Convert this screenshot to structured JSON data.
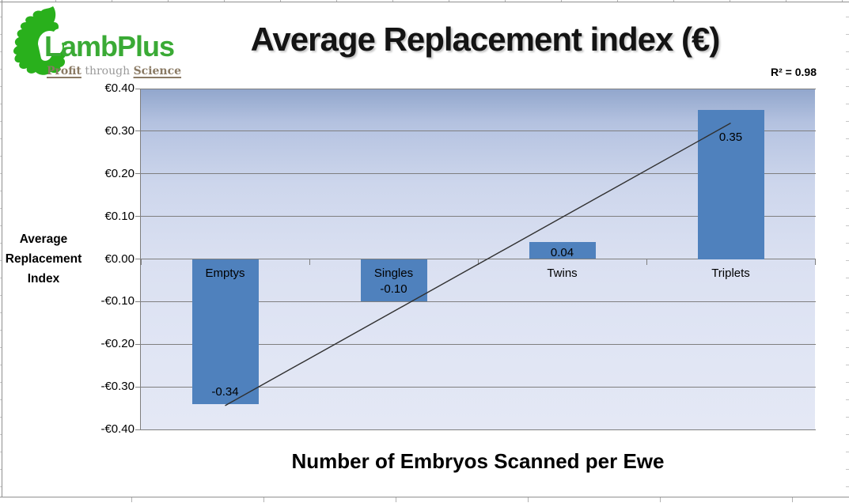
{
  "logo": {
    "brand": "LambPlus",
    "tagline": {
      "profit": "Profit",
      "through": " through ",
      "science": "Science"
    },
    "colors": {
      "map_green": "#29b01c",
      "brand_green": "#3aaa35",
      "tagline_brown": "#8a7a64",
      "tagline_gray": "#9a9a9a"
    }
  },
  "chart_data": {
    "type": "bar",
    "title": "Average Replacement index (€)",
    "xlabel": "Number of Embryos Scanned per Ewe",
    "ylabel": "Average Replacement Index",
    "ylabel_lines": [
      "Average",
      "Replacement",
      "Index"
    ],
    "categories": [
      "Emptys",
      "Singles",
      "Twins",
      "Triplets"
    ],
    "values": [
      -0.34,
      -0.1,
      0.04,
      0.35
    ],
    "value_labels": [
      "-0.34",
      "-0.10",
      "0.04",
      "0.35"
    ],
    "ylim": [
      -0.4,
      0.4
    ],
    "y_tick_step": 0.1,
    "y_ticks": [
      {
        "value": 0.4,
        "label": "€0.40"
      },
      {
        "value": 0.3,
        "label": "€0.30"
      },
      {
        "value": 0.2,
        "label": "€0.20"
      },
      {
        "value": 0.1,
        "label": "€0.10"
      },
      {
        "value": 0.0,
        "label": "€0.00"
      },
      {
        "value": -0.1,
        "label": "-€0.10"
      },
      {
        "value": -0.2,
        "label": "-€0.20"
      },
      {
        "value": -0.3,
        "label": "-€0.30"
      },
      {
        "value": -0.4,
        "label": "-€0.40"
      }
    ],
    "grid": true,
    "legend": false,
    "bar_color": "#4f81bd",
    "grid_color": "#7f7f7f",
    "trendline": {
      "type": "linear",
      "start_value": -0.344,
      "end_value": 0.319,
      "color": "#303030",
      "annotation": "R² = 0.98"
    }
  }
}
